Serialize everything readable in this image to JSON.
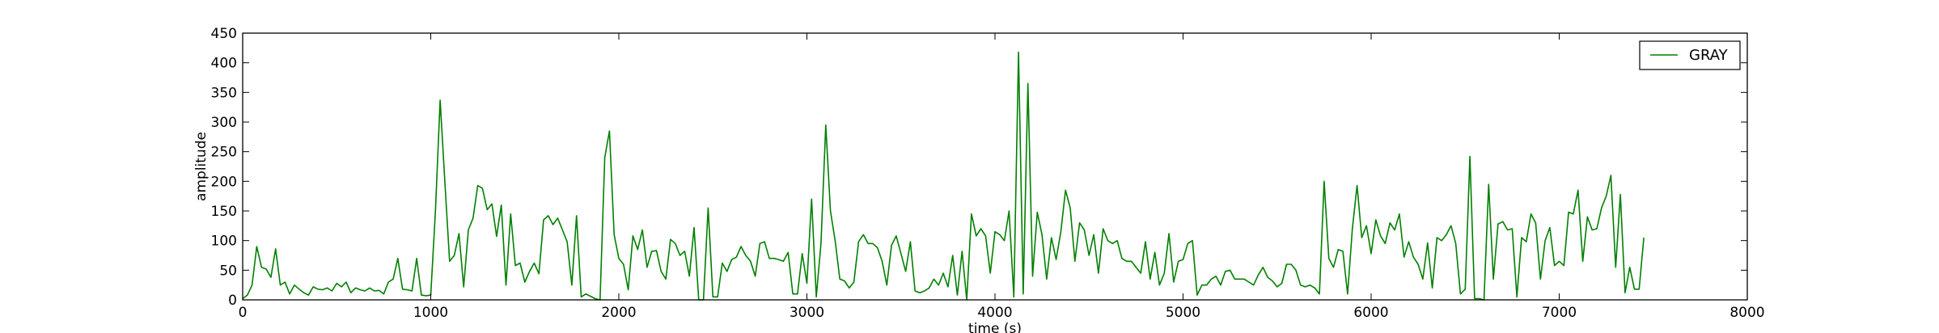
{
  "chart_data": {
    "type": "line",
    "xlabel": "time (s)",
    "ylabel": "amplitude",
    "xlim": [
      0,
      8000
    ],
    "ylim": [
      0,
      450
    ],
    "xticks": [
      0,
      1000,
      2000,
      3000,
      4000,
      5000,
      6000,
      7000,
      8000
    ],
    "yticks": [
      0,
      50,
      100,
      150,
      200,
      250,
      300,
      350,
      400,
      450
    ],
    "grid": false,
    "legend_position": "top-right",
    "series": [
      {
        "name": "GRAY",
        "color": "#008000",
        "x": [
          0,
          25,
          50,
          75,
          100,
          125,
          150,
          175,
          200,
          225,
          250,
          275,
          300,
          325,
          350,
          375,
          400,
          425,
          450,
          475,
          500,
          525,
          550,
          575,
          600,
          625,
          650,
          675,
          700,
          725,
          750,
          775,
          800,
          825,
          850,
          875,
          900,
          925,
          950,
          975,
          1000,
          1025,
          1050,
          1075,
          1100,
          1125,
          1150,
          1175,
          1200,
          1225,
          1250,
          1275,
          1300,
          1325,
          1350,
          1375,
          1400,
          1425,
          1450,
          1475,
          1500,
          1525,
          1550,
          1575,
          1600,
          1625,
          1650,
          1675,
          1700,
          1725,
          1750,
          1775,
          1800,
          1825,
          1850,
          1875,
          1900,
          1925,
          1950,
          1975,
          2000,
          2025,
          2050,
          2075,
          2100,
          2125,
          2150,
          2175,
          2200,
          2225,
          2250,
          2275,
          2300,
          2325,
          2350,
          2375,
          2400,
          2425,
          2450,
          2475,
          2500,
          2525,
          2550,
          2575,
          2600,
          2625,
          2650,
          2675,
          2700,
          2725,
          2750,
          2775,
          2800,
          2825,
          2850,
          2875,
          2900,
          2925,
          2950,
          2975,
          3000,
          3025,
          3050,
          3075,
          3100,
          3125,
          3150,
          3175,
          3200,
          3225,
          3250,
          3275,
          3300,
          3325,
          3350,
          3375,
          3400,
          3425,
          3450,
          3475,
          3500,
          3525,
          3550,
          3575,
          3600,
          3625,
          3650,
          3675,
          3700,
          3725,
          3750,
          3775,
          3800,
          3825,
          3850,
          3875,
          3900,
          3925,
          3950,
          3975,
          4000,
          4025,
          4050,
          4075,
          4100,
          4125,
          4150,
          4175,
          4200,
          4225,
          4250,
          4275,
          4300,
          4325,
          4350,
          4375,
          4400,
          4425,
          4450,
          4475,
          4500,
          4525,
          4550,
          4575,
          4600,
          4625,
          4650,
          4675,
          4700,
          4725,
          4750,
          4775,
          4800,
          4825,
          4850,
          4875,
          4900,
          4925,
          4950,
          4975,
          5000,
          5025,
          5050,
          5075,
          5100,
          5125,
          5150,
          5175,
          5200,
          5225,
          5250,
          5275,
          5300,
          5325,
          5350,
          5375,
          5400,
          5425,
          5450,
          5475,
          5500,
          5525,
          5550,
          5575,
          5600,
          5625,
          5650,
          5675,
          5700,
          5725,
          5750,
          5775,
          5800,
          5825,
          5850,
          5875,
          5900,
          5925,
          5950,
          5975,
          6000,
          6025,
          6050,
          6075,
          6100,
          6125,
          6150,
          6175,
          6200,
          6225,
          6250,
          6275,
          6300,
          6325,
          6350,
          6375,
          6400,
          6425,
          6450,
          6475,
          6500,
          6525,
          6550,
          6575,
          6600,
          6625,
          6650,
          6675,
          6700,
          6725,
          6750,
          6775,
          6800,
          6825,
          6850,
          6875,
          6900,
          6925,
          6950,
          6975,
          7000,
          7025,
          7050,
          7075,
          7100,
          7125,
          7150,
          7175,
          7200,
          7225,
          7250,
          7275,
          7300,
          7325,
          7350,
          7375,
          7400,
          7425,
          7450
        ],
        "y": [
          2,
          8,
          25,
          90,
          55,
          52,
          38,
          86,
          25,
          30,
          10,
          25,
          18,
          12,
          8,
          22,
          18,
          17,
          20,
          15,
          28,
          22,
          30,
          12,
          20,
          17,
          15,
          20,
          15,
          16,
          10,
          30,
          35,
          70,
          18,
          17,
          15,
          70,
          8,
          7,
          8,
          150,
          337,
          200,
          65,
          75,
          112,
          22,
          118,
          138,
          193,
          188,
          152,
          162,
          107,
          160,
          25,
          145,
          58,
          62,
          30,
          48,
          62,
          44,
          135,
          142,
          127,
          138,
          118,
          98,
          25,
          142,
          5,
          10,
          6,
          2,
          0,
          240,
          285,
          110,
          70,
          60,
          17,
          108,
          85,
          118,
          55,
          82,
          83,
          48,
          35,
          102,
          95,
          75,
          82,
          40,
          122,
          0,
          0,
          155,
          5,
          5,
          62,
          48,
          68,
          72,
          90,
          75,
          65,
          40,
          95,
          98,
          70,
          70,
          68,
          65,
          80,
          10,
          10,
          78,
          28,
          170,
          5,
          95,
          295,
          150,
          100,
          35,
          32,
          20,
          30,
          98,
          110,
          95,
          95,
          88,
          65,
          25,
          92,
          108,
          78,
          48,
          98,
          15,
          12,
          15,
          20,
          35,
          25,
          45,
          22,
          75,
          8,
          82,
          0,
          145,
          108,
          120,
          108,
          45,
          115,
          110,
          100,
          150,
          5,
          418,
          10,
          365,
          40,
          148,
          110,
          35,
          105,
          68,
          115,
          185,
          155,
          65,
          130,
          118,
          75,
          110,
          45,
          120,
          100,
          95,
          100,
          70,
          65,
          65,
          55,
          45,
          98,
          35,
          80,
          25,
          45,
          112,
          30,
          65,
          68,
          95,
          100,
          8,
          25,
          25,
          35,
          40,
          25,
          48,
          50,
          35,
          35,
          35,
          30,
          25,
          42,
          55,
          38,
          32,
          22,
          28,
          60,
          60,
          50,
          25,
          22,
          25,
          20,
          10,
          200,
          70,
          55,
          85,
          82,
          10,
          120,
          193,
          105,
          125,
          78,
          135,
          108,
          95,
          130,
          118,
          145,
          72,
          98,
          72,
          60,
          35,
          96,
          20,
          105,
          100,
          110,
          125,
          95,
          10,
          18,
          242,
          2,
          2,
          0,
          195,
          35,
          128,
          132,
          118,
          120,
          5,
          105,
          98,
          145,
          130,
          35,
          100,
          122,
          58,
          65,
          58,
          148,
          145,
          185,
          65,
          140,
          118,
          120,
          155,
          175,
          210,
          55,
          178,
          12,
          55,
          18,
          18,
          105
        ]
      }
    ]
  }
}
